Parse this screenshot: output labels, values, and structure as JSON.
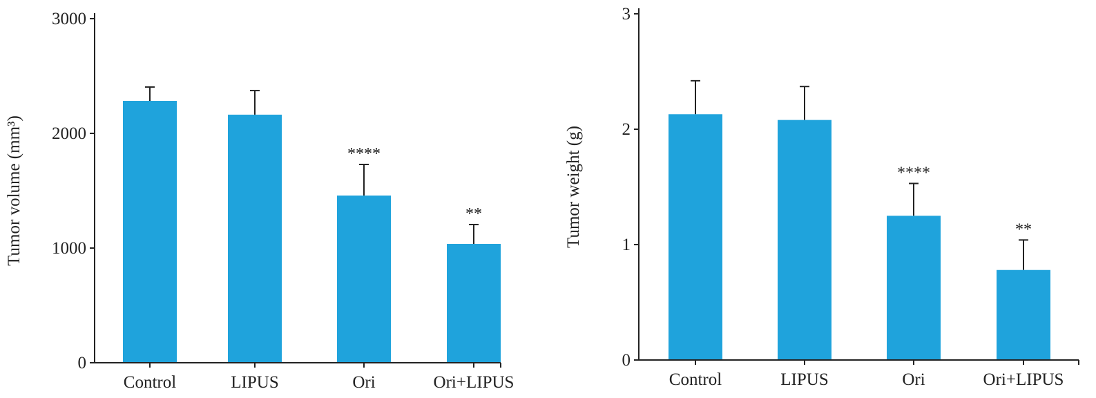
{
  "chart_data": [
    {
      "type": "bar",
      "title": "",
      "categories": [
        "Control",
        "LIPUS",
        "Ori",
        "Ori+LIPUS"
      ],
      "values": [
        2283,
        2163,
        1458,
        1036
      ],
      "error_upper": [
        2404,
        2373,
        1729,
        1205
      ],
      "annotations": [
        "",
        "",
        "****",
        "**"
      ],
      "xlabel": "",
      "ylabel": "Tumor volume (mm³)",
      "ylim": [
        0,
        3000
      ],
      "yticks": [
        "0",
        "1000",
        "2000",
        "3000"
      ],
      "ytick_values": [
        0,
        1000,
        2000,
        3000
      ],
      "grid": false,
      "color": "#1fa3dc"
    },
    {
      "type": "bar",
      "title": "",
      "categories": [
        "Control",
        "LIPUS",
        "Ori",
        "Ori+LIPUS"
      ],
      "values": [
        2.13,
        2.08,
        1.25,
        0.78
      ],
      "error_upper": [
        2.42,
        2.37,
        1.53,
        1.04
      ],
      "annotations": [
        "",
        "",
        "****",
        "**"
      ],
      "xlabel": "",
      "ylabel": "Tumor weight (g)",
      "ylim": [
        0,
        3
      ],
      "yticks": [
        "0",
        "1",
        "2",
        "3"
      ],
      "ytick_values": [
        0,
        1,
        2,
        3
      ],
      "grid": false,
      "color": "#1fa3dc"
    }
  ]
}
